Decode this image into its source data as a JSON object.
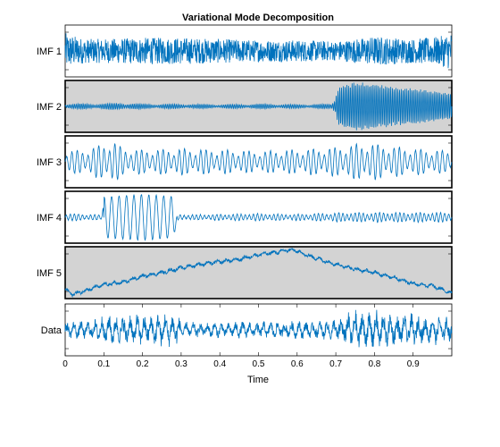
{
  "chart_data": {
    "type": "line",
    "title": "Variational Mode Decomposition",
    "xlabel": "Time",
    "xlim": [
      0,
      1
    ],
    "x_ticks": [
      "0",
      "0.1",
      "0.2",
      "0.3",
      "0.4",
      "0.5",
      "0.6",
      "0.7",
      "0.8",
      "0.9"
    ],
    "x_tick_values": [
      0,
      0.1,
      0.2,
      0.3,
      0.4,
      0.5,
      0.6,
      0.7,
      0.8,
      0.9
    ],
    "line_color": "#0072BD",
    "panels": [
      {
        "name": "IMF 1",
        "background": "#ffffff",
        "envelope": [
          [
            0,
            0.75
          ],
          [
            0.05,
            0.5
          ],
          [
            0.1,
            0.5
          ],
          [
            0.2,
            0.55
          ],
          [
            0.3,
            0.55
          ],
          [
            0.4,
            0.5
          ],
          [
            0.5,
            0.45
          ],
          [
            0.6,
            0.45
          ],
          [
            0.7,
            0.4
          ],
          [
            0.75,
            0.5
          ],
          [
            0.8,
            0.6
          ],
          [
            0.9,
            0.5
          ],
          [
            0.97,
            0.6
          ],
          [
            1,
            0.8
          ]
        ]
      },
      {
        "name": "IMF 2",
        "background": "#d3d3d3",
        "envelope": [
          [
            0,
            0.1
          ],
          [
            0.1,
            0.12
          ],
          [
            0.15,
            0.15
          ],
          [
            0.2,
            0.1
          ],
          [
            0.3,
            0.1
          ],
          [
            0.4,
            0.08
          ],
          [
            0.5,
            0.1
          ],
          [
            0.6,
            0.08
          ],
          [
            0.69,
            0.1
          ],
          [
            0.71,
            0.8
          ],
          [
            0.75,
            0.95
          ],
          [
            0.8,
            0.9
          ],
          [
            0.85,
            0.75
          ],
          [
            0.9,
            0.7
          ],
          [
            0.95,
            0.6
          ],
          [
            1,
            0.5
          ]
        ]
      },
      {
        "name": "IMF 3",
        "background": "#ffffff",
        "envelope": [
          [
            0,
            0.45
          ],
          [
            0.05,
            0.5
          ],
          [
            0.1,
            0.75
          ],
          [
            0.12,
            0.95
          ],
          [
            0.15,
            0.55
          ],
          [
            0.2,
            0.5
          ],
          [
            0.3,
            0.55
          ],
          [
            0.4,
            0.5
          ],
          [
            0.5,
            0.45
          ],
          [
            0.6,
            0.5
          ],
          [
            0.7,
            0.6
          ],
          [
            0.78,
            0.8
          ],
          [
            0.82,
            0.7
          ],
          [
            0.9,
            0.55
          ],
          [
            1,
            0.45
          ]
        ]
      },
      {
        "name": "IMF 4",
        "background": "#ffffff",
        "envelope": [
          [
            0,
            0.15
          ],
          [
            0.08,
            0.1
          ],
          [
            0.095,
            0.1
          ],
          [
            0.1,
            0.85
          ],
          [
            0.2,
            0.95
          ],
          [
            0.28,
            0.85
          ],
          [
            0.29,
            0.1
          ],
          [
            0.4,
            0.12
          ],
          [
            0.5,
            0.15
          ],
          [
            0.6,
            0.12
          ],
          [
            0.7,
            0.18
          ],
          [
            0.8,
            0.2
          ],
          [
            0.9,
            0.2
          ],
          [
            1,
            0.2
          ]
        ]
      },
      {
        "name": "IMF 5",
        "background": "#d3d3d3",
        "trend": [
          [
            0,
            -0.7
          ],
          [
            0.02,
            -0.9
          ],
          [
            0.05,
            -0.75
          ],
          [
            0.1,
            -0.5
          ],
          [
            0.15,
            -0.4
          ],
          [
            0.2,
            -0.15
          ],
          [
            0.25,
            0.0
          ],
          [
            0.3,
            0.2
          ],
          [
            0.35,
            0.35
          ],
          [
            0.4,
            0.45
          ],
          [
            0.45,
            0.55
          ],
          [
            0.5,
            0.75
          ],
          [
            0.55,
            0.85
          ],
          [
            0.58,
            0.95
          ],
          [
            0.6,
            0.9
          ],
          [
            0.62,
            0.75
          ],
          [
            0.65,
            0.6
          ],
          [
            0.7,
            0.35
          ],
          [
            0.75,
            0.15
          ],
          [
            0.8,
            0.0
          ],
          [
            0.85,
            -0.2
          ],
          [
            0.9,
            -0.45
          ],
          [
            0.95,
            -0.55
          ],
          [
            1,
            -0.85
          ]
        ]
      },
      {
        "name": "Data",
        "background": "#ffffff",
        "envelope": [
          [
            0,
            0.4
          ],
          [
            0.05,
            0.4
          ],
          [
            0.1,
            0.65
          ],
          [
            0.15,
            0.75
          ],
          [
            0.2,
            0.7
          ],
          [
            0.25,
            0.75
          ],
          [
            0.29,
            0.85
          ],
          [
            0.3,
            0.35
          ],
          [
            0.4,
            0.35
          ],
          [
            0.5,
            0.4
          ],
          [
            0.6,
            0.4
          ],
          [
            0.69,
            0.45
          ],
          [
            0.71,
            0.7
          ],
          [
            0.75,
            0.9
          ],
          [
            0.8,
            0.95
          ],
          [
            0.85,
            0.75
          ],
          [
            0.9,
            0.7
          ],
          [
            1,
            0.6
          ]
        ]
      }
    ]
  }
}
